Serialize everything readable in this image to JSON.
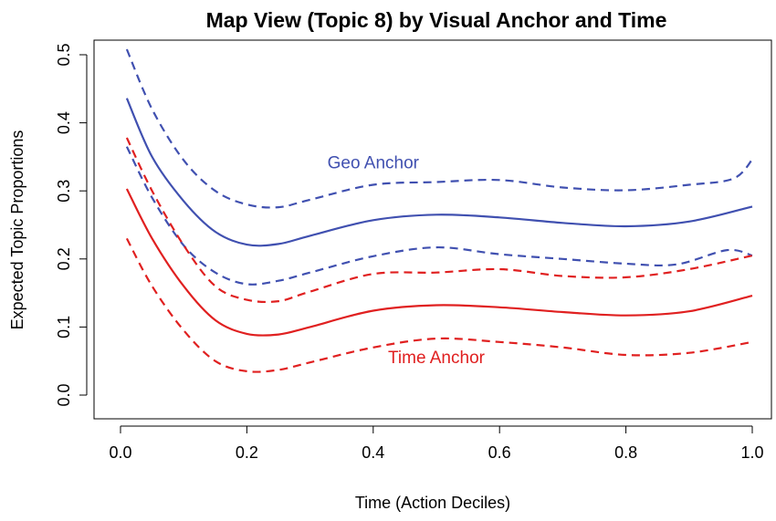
{
  "chart_data": {
    "type": "line",
    "title": "Map View (Topic 8) by Visual Anchor and Time",
    "xlabel": "Time (Action Deciles)",
    "ylabel": "Expected Topic Proportions",
    "xlim": [
      0.0,
      1.0
    ],
    "ylim": [
      0.0,
      0.5
    ],
    "x_ticks": [
      "0.0",
      "0.2",
      "0.4",
      "0.6",
      "0.8",
      "1.0"
    ],
    "y_ticks": [
      "0.0",
      "0.1",
      "0.2",
      "0.3",
      "0.4",
      "0.5"
    ],
    "grid": false,
    "annotations": [
      {
        "text": "Geo Anchor",
        "x": 0.4,
        "y": 0.333,
        "color": "#4050b0"
      },
      {
        "text": "Time Anchor",
        "x": 0.5,
        "y": 0.047,
        "color": "#e02020"
      }
    ],
    "series": [
      {
        "role": "estimate",
        "group": "Geo Anchor",
        "color": "#4050b0",
        "dashed": false,
        "x": [
          0.01,
          0.05,
          0.1,
          0.15,
          0.2,
          0.25,
          0.3,
          0.4,
          0.5,
          0.6,
          0.7,
          0.8,
          0.9,
          1.0
        ],
        "y": [
          0.436,
          0.35,
          0.285,
          0.24,
          0.221,
          0.222,
          0.234,
          0.257,
          0.265,
          0.261,
          0.253,
          0.248,
          0.255,
          0.277
        ]
      },
      {
        "role": "upper",
        "group": "Geo Anchor",
        "color": "#4050b0",
        "dashed": true,
        "x": [
          0.01,
          0.05,
          0.1,
          0.15,
          0.2,
          0.25,
          0.3,
          0.4,
          0.5,
          0.6,
          0.7,
          0.8,
          0.9,
          0.97,
          1.0
        ],
        "y": [
          0.508,
          0.42,
          0.345,
          0.3,
          0.28,
          0.276,
          0.287,
          0.309,
          0.313,
          0.316,
          0.305,
          0.301,
          0.309,
          0.318,
          0.346
        ]
      },
      {
        "role": "lower",
        "group": "Geo Anchor",
        "color": "#4050b0",
        "dashed": true,
        "x": [
          0.01,
          0.05,
          0.1,
          0.15,
          0.2,
          0.25,
          0.3,
          0.4,
          0.5,
          0.6,
          0.7,
          0.8,
          0.88,
          0.96,
          1.0
        ],
        "y": [
          0.365,
          0.29,
          0.22,
          0.18,
          0.163,
          0.168,
          0.18,
          0.204,
          0.217,
          0.207,
          0.2,
          0.193,
          0.192,
          0.213,
          0.205
        ]
      },
      {
        "role": "estimate",
        "group": "Time Anchor",
        "color": "#e02020",
        "dashed": false,
        "x": [
          0.01,
          0.05,
          0.1,
          0.15,
          0.2,
          0.25,
          0.3,
          0.4,
          0.5,
          0.6,
          0.7,
          0.8,
          0.9,
          1.0
        ],
        "y": [
          0.303,
          0.23,
          0.16,
          0.11,
          0.09,
          0.089,
          0.1,
          0.124,
          0.132,
          0.129,
          0.122,
          0.117,
          0.123,
          0.146
        ]
      },
      {
        "role": "upper",
        "group": "Time Anchor",
        "color": "#e02020",
        "dashed": true,
        "x": [
          0.01,
          0.05,
          0.1,
          0.15,
          0.2,
          0.25,
          0.3,
          0.4,
          0.5,
          0.6,
          0.7,
          0.8,
          0.9,
          1.0
        ],
        "y": [
          0.378,
          0.3,
          0.22,
          0.16,
          0.14,
          0.138,
          0.152,
          0.178,
          0.18,
          0.185,
          0.175,
          0.173,
          0.185,
          0.205
        ]
      },
      {
        "role": "lower",
        "group": "Time Anchor",
        "color": "#e02020",
        "dashed": true,
        "x": [
          0.01,
          0.05,
          0.1,
          0.15,
          0.2,
          0.25,
          0.3,
          0.4,
          0.5,
          0.6,
          0.7,
          0.8,
          0.9,
          1.0
        ],
        "y": [
          0.23,
          0.16,
          0.095,
          0.05,
          0.035,
          0.037,
          0.048,
          0.07,
          0.083,
          0.078,
          0.07,
          0.059,
          0.062,
          0.078
        ]
      }
    ]
  }
}
